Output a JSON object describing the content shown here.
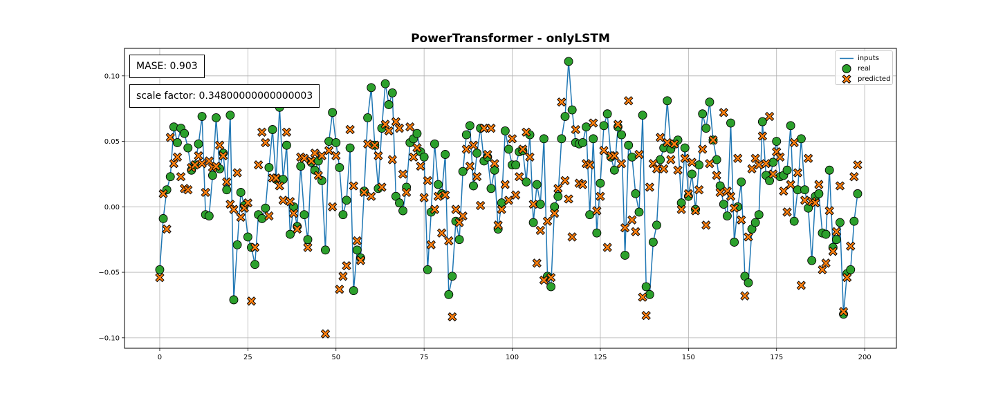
{
  "chart_data": {
    "type": "scatter",
    "title": "PowerTransformer - onlyLSTM",
    "xlabel": "",
    "ylabel": "",
    "xlim": [
      -10,
      209
    ],
    "ylim": [
      -0.108,
      0.121
    ],
    "xticks": [
      0,
      25,
      50,
      75,
      100,
      125,
      150,
      175,
      200
    ],
    "yticks": [
      -0.1,
      -0.05,
      0.0,
      0.05,
      0.1
    ],
    "ytick_labels": [
      "−0.10",
      "−0.05",
      "0.00",
      "0.05",
      "0.10"
    ],
    "grid": true,
    "legend_position": "top-right",
    "annotations": [
      "MASE: 0.903",
      "scale factor: 0.34800000000000003"
    ],
    "series": [
      {
        "name": "inputs",
        "kind": "line",
        "color": "#1f77b4",
        "x_start": 0,
        "values": [
          -0.048,
          -0.009,
          0.013,
          0.023,
          0.061,
          0.049,
          0.06,
          0.056,
          0.045,
          0.028,
          0.032,
          0.048,
          0.069,
          -0.006,
          -0.007,
          0.024,
          0.068,
          0.029,
          0.041,
          0.013,
          0.07,
          -0.071,
          -0.029,
          0.011,
          0.001,
          -0.023,
          -0.031,
          -0.044,
          -0.006,
          -0.009,
          -0.001,
          0.03,
          0.059,
          0.021,
          0.076,
          0.021,
          0.047,
          -0.021,
          0.0,
          -0.015,
          0.031,
          -0.006,
          -0.025,
          0.034,
          0.028,
          0.035,
          0.02,
          -0.033,
          0.05,
          0.072,
          0.049,
          0.03,
          -0.006,
          0.005,
          0.045,
          -0.064,
          -0.033,
          -0.039,
          0.012,
          0.068,
          0.091,
          0.047,
          0.014,
          0.06,
          0.094,
          0.078,
          0.087,
          0.008,
          0.003,
          -0.003,
          0.015,
          0.049,
          0.052,
          0.056,
          0.042,
          0.038,
          -0.048,
          -0.004,
          0.048,
          0.017,
          0.01,
          0.04,
          -0.067,
          -0.053,
          -0.011,
          -0.025,
          0.027,
          0.055,
          0.062,
          0.016,
          0.041,
          0.06,
          0.035,
          0.038,
          0.014,
          0.028,
          -0.017,
          0.003,
          0.058,
          0.044,
          0.032,
          0.032,
          0.042,
          0.043,
          0.019,
          0.055,
          -0.012,
          0.017,
          0.002,
          0.052,
          -0.053,
          -0.061,
          0.0,
          0.008,
          0.052,
          0.069,
          0.111,
          0.074,
          0.049,
          0.048,
          0.049,
          0.061,
          -0.006,
          0.052,
          -0.02,
          0.018,
          0.062,
          0.071,
          0.038,
          0.028,
          0.061,
          0.055,
          -0.037,
          0.047,
          0.038,
          0.01,
          -0.004,
          0.07,
          -0.061,
          -0.067,
          -0.027,
          -0.014,
          0.036,
          0.045,
          0.081,
          0.044,
          0.048,
          0.051,
          0.003,
          0.045,
          0.008,
          0.025,
          -0.002,
          0.032,
          0.071,
          0.06,
          0.08,
          0.051,
          0.036,
          0.016,
          0.002,
          -0.007,
          0.064,
          -0.027,
          0.0,
          0.019,
          -0.053,
          -0.058,
          -0.017,
          -0.012,
          -0.006,
          0.065,
          0.024,
          0.02,
          0.034,
          0.05,
          0.023,
          0.024,
          0.028,
          0.062,
          -0.011,
          0.013,
          0.052,
          0.013,
          -0.001,
          -0.041,
          0.008,
          0.01,
          -0.02,
          -0.021,
          0.028,
          -0.031,
          -0.025,
          -0.012,
          -0.082,
          -0.051,
          -0.048,
          -0.011,
          0.01
        ]
      },
      {
        "name": "real",
        "kind": "circle",
        "color": "#2ca02c",
        "x_start": 0,
        "values": [
          -0.048,
          -0.009,
          0.013,
          0.023,
          0.061,
          0.049,
          0.06,
          0.056,
          0.045,
          0.028,
          0.032,
          0.048,
          0.069,
          -0.006,
          -0.007,
          0.024,
          0.068,
          0.029,
          0.041,
          0.013,
          0.07,
          -0.071,
          -0.029,
          0.011,
          0.001,
          -0.023,
          -0.031,
          -0.044,
          -0.006,
          -0.009,
          -0.001,
          0.03,
          0.059,
          0.021,
          0.076,
          0.021,
          0.047,
          -0.021,
          0.0,
          -0.015,
          0.031,
          -0.006,
          -0.025,
          0.034,
          0.028,
          0.035,
          0.02,
          -0.033,
          0.05,
          0.072,
          0.049,
          0.03,
          -0.006,
          0.005,
          0.045,
          -0.064,
          -0.033,
          -0.039,
          0.012,
          0.068,
          0.091,
          0.047,
          0.014,
          0.06,
          0.094,
          0.078,
          0.087,
          0.008,
          0.003,
          -0.003,
          0.015,
          0.049,
          0.052,
          0.056,
          0.042,
          0.038,
          -0.048,
          -0.004,
          0.048,
          0.017,
          0.01,
          0.04,
          -0.067,
          -0.053,
          -0.011,
          -0.025,
          0.027,
          0.055,
          0.062,
          0.016,
          0.041,
          0.06,
          0.035,
          0.038,
          0.014,
          0.028,
          -0.017,
          0.003,
          0.058,
          0.044,
          0.032,
          0.032,
          0.042,
          0.043,
          0.019,
          0.055,
          -0.012,
          0.017,
          0.002,
          0.052,
          -0.053,
          -0.061,
          0.0,
          0.008,
          0.052,
          0.069,
          0.111,
          0.074,
          0.049,
          0.048,
          0.049,
          0.061,
          -0.006,
          0.052,
          -0.02,
          0.018,
          0.062,
          0.071,
          0.038,
          0.028,
          0.061,
          0.055,
          -0.037,
          0.047,
          0.038,
          0.01,
          -0.004,
          0.07,
          -0.061,
          -0.067,
          -0.027,
          -0.014,
          0.036,
          0.045,
          0.081,
          0.044,
          0.048,
          0.051,
          0.003,
          0.045,
          0.008,
          0.025,
          -0.002,
          0.032,
          0.071,
          0.06,
          0.08,
          0.051,
          0.036,
          0.016,
          0.002,
          -0.007,
          0.064,
          -0.027,
          0.0,
          0.019,
          -0.053,
          -0.058,
          -0.017,
          -0.012,
          -0.006,
          0.065,
          0.024,
          0.02,
          0.034,
          0.05,
          0.023,
          0.024,
          0.028,
          0.062,
          -0.011,
          0.013,
          0.052,
          0.013,
          -0.001,
          -0.041,
          0.008,
          0.01,
          -0.02,
          -0.021,
          0.028,
          -0.031,
          -0.025,
          -0.012,
          -0.082,
          -0.051,
          -0.048,
          -0.011,
          0.01
        ]
      },
      {
        "name": "predicted",
        "kind": "x-marker",
        "color": "#ff7f0e",
        "x_start": 0,
        "values": [
          -0.054,
          0.01,
          -0.017,
          0.053,
          0.033,
          0.038,
          0.023,
          0.014,
          0.013,
          0.03,
          0.032,
          0.039,
          0.033,
          0.011,
          0.035,
          0.03,
          0.031,
          0.047,
          0.039,
          0.019,
          0.002,
          -0.002,
          0.026,
          -0.008,
          -0.001,
          0.003,
          -0.072,
          -0.031,
          0.032,
          0.057,
          0.049,
          -0.007,
          0.022,
          0.022,
          0.016,
          0.005,
          0.057,
          0.004,
          -0.005,
          -0.017,
          0.038,
          0.037,
          -0.031,
          0.035,
          0.041,
          0.024,
          0.039,
          -0.097,
          0.043,
          0.0,
          0.039,
          -0.063,
          -0.053,
          -0.045,
          0.059,
          0.016,
          -0.026,
          -0.041,
          0.011,
          0.048,
          0.008,
          0.047,
          0.039,
          0.015,
          0.063,
          0.058,
          0.036,
          0.065,
          0.06,
          0.025,
          0.011,
          0.061,
          0.038,
          0.045,
          0.031,
          0.007,
          0.02,
          -0.029,
          -0.002,
          0.008,
          -0.02,
          0.009,
          -0.026,
          -0.084,
          -0.002,
          -0.012,
          -0.007,
          0.044,
          0.031,
          0.047,
          0.023,
          0.001,
          0.06,
          0.04,
          0.06,
          0.033,
          -0.014,
          -0.002,
          0.017,
          0.005,
          0.052,
          0.009,
          0.023,
          0.044,
          0.057,
          0.038,
          0.002,
          -0.043,
          -0.018,
          -0.056,
          -0.011,
          -0.054,
          -0.005,
          0.014,
          0.08,
          0.02,
          0.006,
          -0.023,
          0.059,
          0.018,
          0.017,
          0.033,
          0.032,
          0.064,
          -0.003,
          0.008,
          0.043,
          -0.031,
          0.039,
          0.039,
          0.063,
          0.033,
          -0.016,
          0.081,
          -0.01,
          -0.019,
          0.04,
          -0.069,
          -0.083,
          0.015,
          0.033,
          0.029,
          0.053,
          0.029,
          0.049,
          0.036,
          0.048,
          0.028,
          -0.002,
          0.037,
          0.01,
          0.034,
          -0.003,
          0.013,
          0.044,
          -0.014,
          0.033,
          0.051,
          0.024,
          0.011,
          0.072,
          0.012,
          0.008,
          -0.001,
          0.037,
          -0.01,
          -0.068,
          -0.023,
          0.029,
          0.037,
          0.032,
          0.054,
          0.033,
          0.069,
          0.025,
          0.042,
          0.038,
          0.012,
          -0.004,
          0.017,
          0.049,
          0.026,
          -0.06,
          0.005,
          0.037,
          0.004,
          0.003,
          0.017,
          -0.048,
          -0.043,
          -0.003,
          -0.034,
          -0.019,
          0.016,
          -0.08,
          -0.054,
          -0.03,
          0.023,
          0.032
        ]
      }
    ]
  }
}
